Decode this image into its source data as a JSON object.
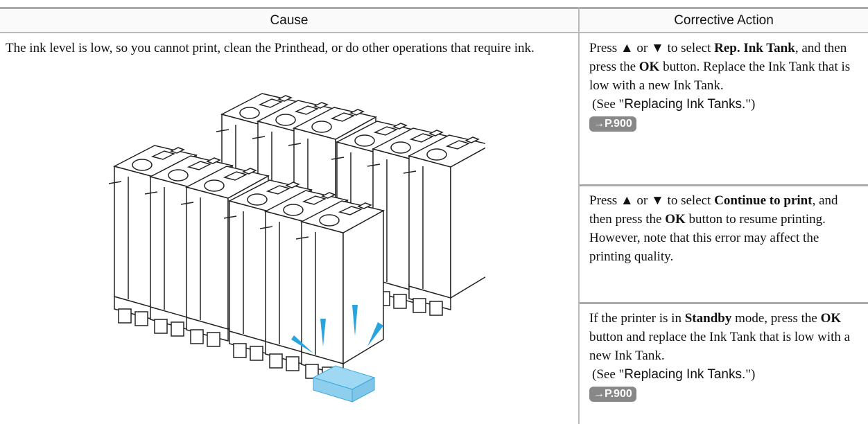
{
  "table": {
    "headers": [
      "Cause",
      "Corrective Action"
    ],
    "cause": "The ink level is low, so you cannot print, clean the Printhead, or do other operations that require ink.",
    "actions": [
      {
        "parts": [
          {
            "text": "Press ▲ or ▼ to select "
          },
          {
            "text": "Rep. Ink Tank",
            "bold": true
          },
          {
            "text": ", and then press the "
          },
          {
            "text": "OK",
            "bold": true
          },
          {
            "text": " button. Replace the Ink Tank that is low with a new Ink Tank."
          }
        ],
        "see": [
          {
            "text": "(See \""
          },
          {
            "text": "Replacing Ink Tanks.",
            "sans": true
          },
          {
            "text": "\")"
          }
        ],
        "link": "→P.900"
      },
      {
        "parts": [
          {
            "text": "Press ▲ or ▼ to select "
          },
          {
            "text": "Continue to print",
            "bold": true
          },
          {
            "text": ", and then press the "
          },
          {
            "text": "OK",
            "bold": true
          },
          {
            "text": " button to resume printing. However, note that this error may affect the printing quality."
          }
        ]
      },
      {
        "parts": [
          {
            "text": "If the printer is in "
          },
          {
            "text": "Standby",
            "bold": true
          },
          {
            "text": " mode, press the "
          },
          {
            "text": "OK",
            "bold": true
          },
          {
            "text": " button and replace the Ink Tank that is low with a new Ink Tank."
          }
        ],
        "see": [
          {
            "text": "(See \""
          },
          {
            "text": "Replacing Ink Tanks.",
            "sans": true
          },
          {
            "text": "\")"
          }
        ],
        "link": "→P.900"
      }
    ]
  }
}
